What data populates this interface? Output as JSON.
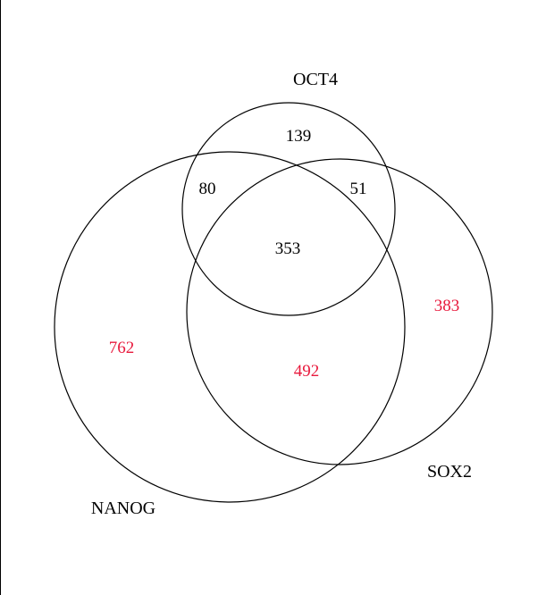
{
  "colors": {
    "outline": "#000000",
    "count_default": "#000000",
    "count_highlight": "#e8193c",
    "background": "#ffffff"
  },
  "sets": {
    "oct4": "OCT4",
    "sox2": "SOX2",
    "nanog": "NANOG"
  },
  "regions": {
    "oct4_only": {
      "value": "139",
      "highlight": false
    },
    "oct4_nanog": {
      "value": "80",
      "highlight": false
    },
    "oct4_sox2": {
      "value": "51",
      "highlight": false
    },
    "all_three": {
      "value": "353",
      "highlight": false
    },
    "nanog_only": {
      "value": "762",
      "highlight": true
    },
    "nanog_sox2": {
      "value": "492",
      "highlight": true
    },
    "sox2_only": {
      "value": "383",
      "highlight": true
    }
  }
}
